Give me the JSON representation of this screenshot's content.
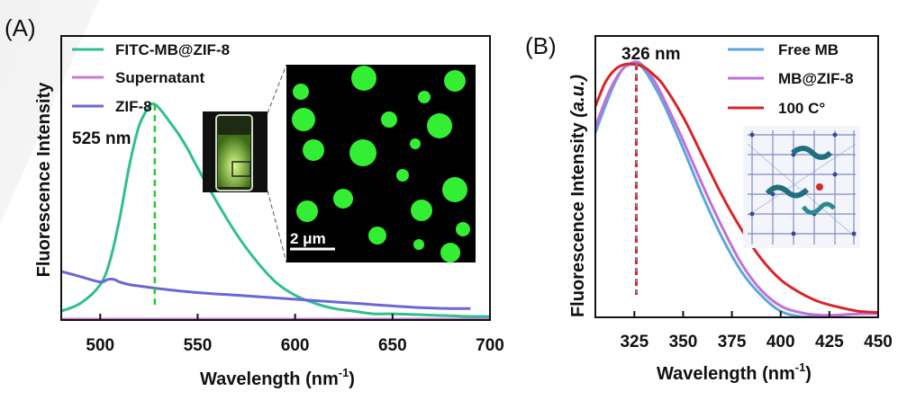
{
  "chart_data": [
    {
      "panel": "(A)",
      "type": "line",
      "xlabel": "Wavelength (nm",
      "xlabel_sup": "-1",
      "xlabel_close": ")",
      "ylabel": "Fluorescence Intensity",
      "xlim": [
        480,
        700
      ],
      "ylim": [
        0,
        1.0
      ],
      "xticks": [
        500,
        550,
        600,
        650,
        700
      ],
      "annotation": "525 nm",
      "annotation_x": 528,
      "series": [
        {
          "name": "FITC-MB@ZIF-8",
          "color": "#2fc08d",
          "x": [
            480,
            490,
            500,
            505,
            510,
            515,
            520,
            525,
            528,
            532,
            536,
            540,
            545,
            550,
            560,
            570,
            580,
            590,
            600,
            610,
            620,
            630,
            640,
            650,
            670,
            690,
            700
          ],
          "y": [
            0.03,
            0.06,
            0.13,
            0.22,
            0.38,
            0.58,
            0.73,
            0.8,
            0.81,
            0.78,
            0.74,
            0.7,
            0.64,
            0.57,
            0.44,
            0.32,
            0.22,
            0.14,
            0.09,
            0.06,
            0.04,
            0.03,
            0.02,
            0.02,
            0.015,
            0.01,
            0.01
          ]
        },
        {
          "name": "Supernatant",
          "color": "#c77bd3",
          "x": [
            480,
            520,
            560,
            600,
            640,
            680,
            700
          ],
          "y": [
            0.0,
            0.0,
            0.0,
            0.0,
            0.0,
            0.0,
            0.0
          ]
        },
        {
          "name": "ZIF-8",
          "color": "#6b66d6",
          "x": [
            480,
            490,
            500,
            504,
            507,
            510,
            515,
            520,
            530,
            550,
            570,
            600,
            630,
            660,
            680,
            690
          ],
          "y": [
            0.18,
            0.16,
            0.14,
            0.15,
            0.15,
            0.14,
            0.13,
            0.125,
            0.115,
            0.1,
            0.09,
            0.075,
            0.06,
            0.045,
            0.04,
            0.04
          ]
        }
      ],
      "inset_scale_label": "2 μm"
    },
    {
      "panel": "(B)",
      "type": "line",
      "xlabel": "Wavelength (nm",
      "xlabel_sup": "-1",
      "xlabel_close": ")",
      "ylabel": "Fluorescence Intensity ",
      "ylabel_unit": "(a.u.)",
      "xlim": [
        305,
        450
      ],
      "ylim": [
        0,
        1.0
      ],
      "xticks": [
        325,
        350,
        375,
        400,
        425,
        450
      ],
      "annotation": "326 nm",
      "annotation_x": 326,
      "series": [
        {
          "name": "Free MB",
          "color": "#5aa7e0",
          "x": [
            305,
            310,
            315,
            320,
            326,
            330,
            335,
            340,
            350,
            360,
            370,
            380,
            390,
            400,
            410,
            420,
            430,
            440,
            450
          ],
          "y": [
            0.7,
            0.8,
            0.89,
            0.95,
            0.96,
            0.94,
            0.88,
            0.81,
            0.64,
            0.46,
            0.3,
            0.17,
            0.08,
            0.02,
            0.0,
            0.0,
            0.005,
            0.01,
            0.01
          ]
        },
        {
          "name": "MB@ZIF-8",
          "color": "#c270d8",
          "x": [
            305,
            310,
            315,
            320,
            326,
            330,
            335,
            340,
            350,
            360,
            370,
            380,
            390,
            400,
            410,
            420,
            430,
            440,
            450
          ],
          "y": [
            0.72,
            0.82,
            0.9,
            0.95,
            0.97,
            0.95,
            0.9,
            0.83,
            0.67,
            0.5,
            0.34,
            0.2,
            0.1,
            0.04,
            0.015,
            0.005,
            0.005,
            0.01,
            0.01
          ]
        },
        {
          "name": "100 C°",
          "color": "#d8252a",
          "x": [
            305,
            310,
            315,
            320,
            326,
            330,
            335,
            340,
            350,
            360,
            370,
            380,
            390,
            400,
            410,
            420,
            430,
            440,
            450
          ],
          "y": [
            0.8,
            0.89,
            0.94,
            0.96,
            0.96,
            0.95,
            0.92,
            0.88,
            0.76,
            0.61,
            0.46,
            0.33,
            0.22,
            0.14,
            0.09,
            0.055,
            0.035,
            0.02,
            0.015
          ]
        }
      ]
    }
  ]
}
